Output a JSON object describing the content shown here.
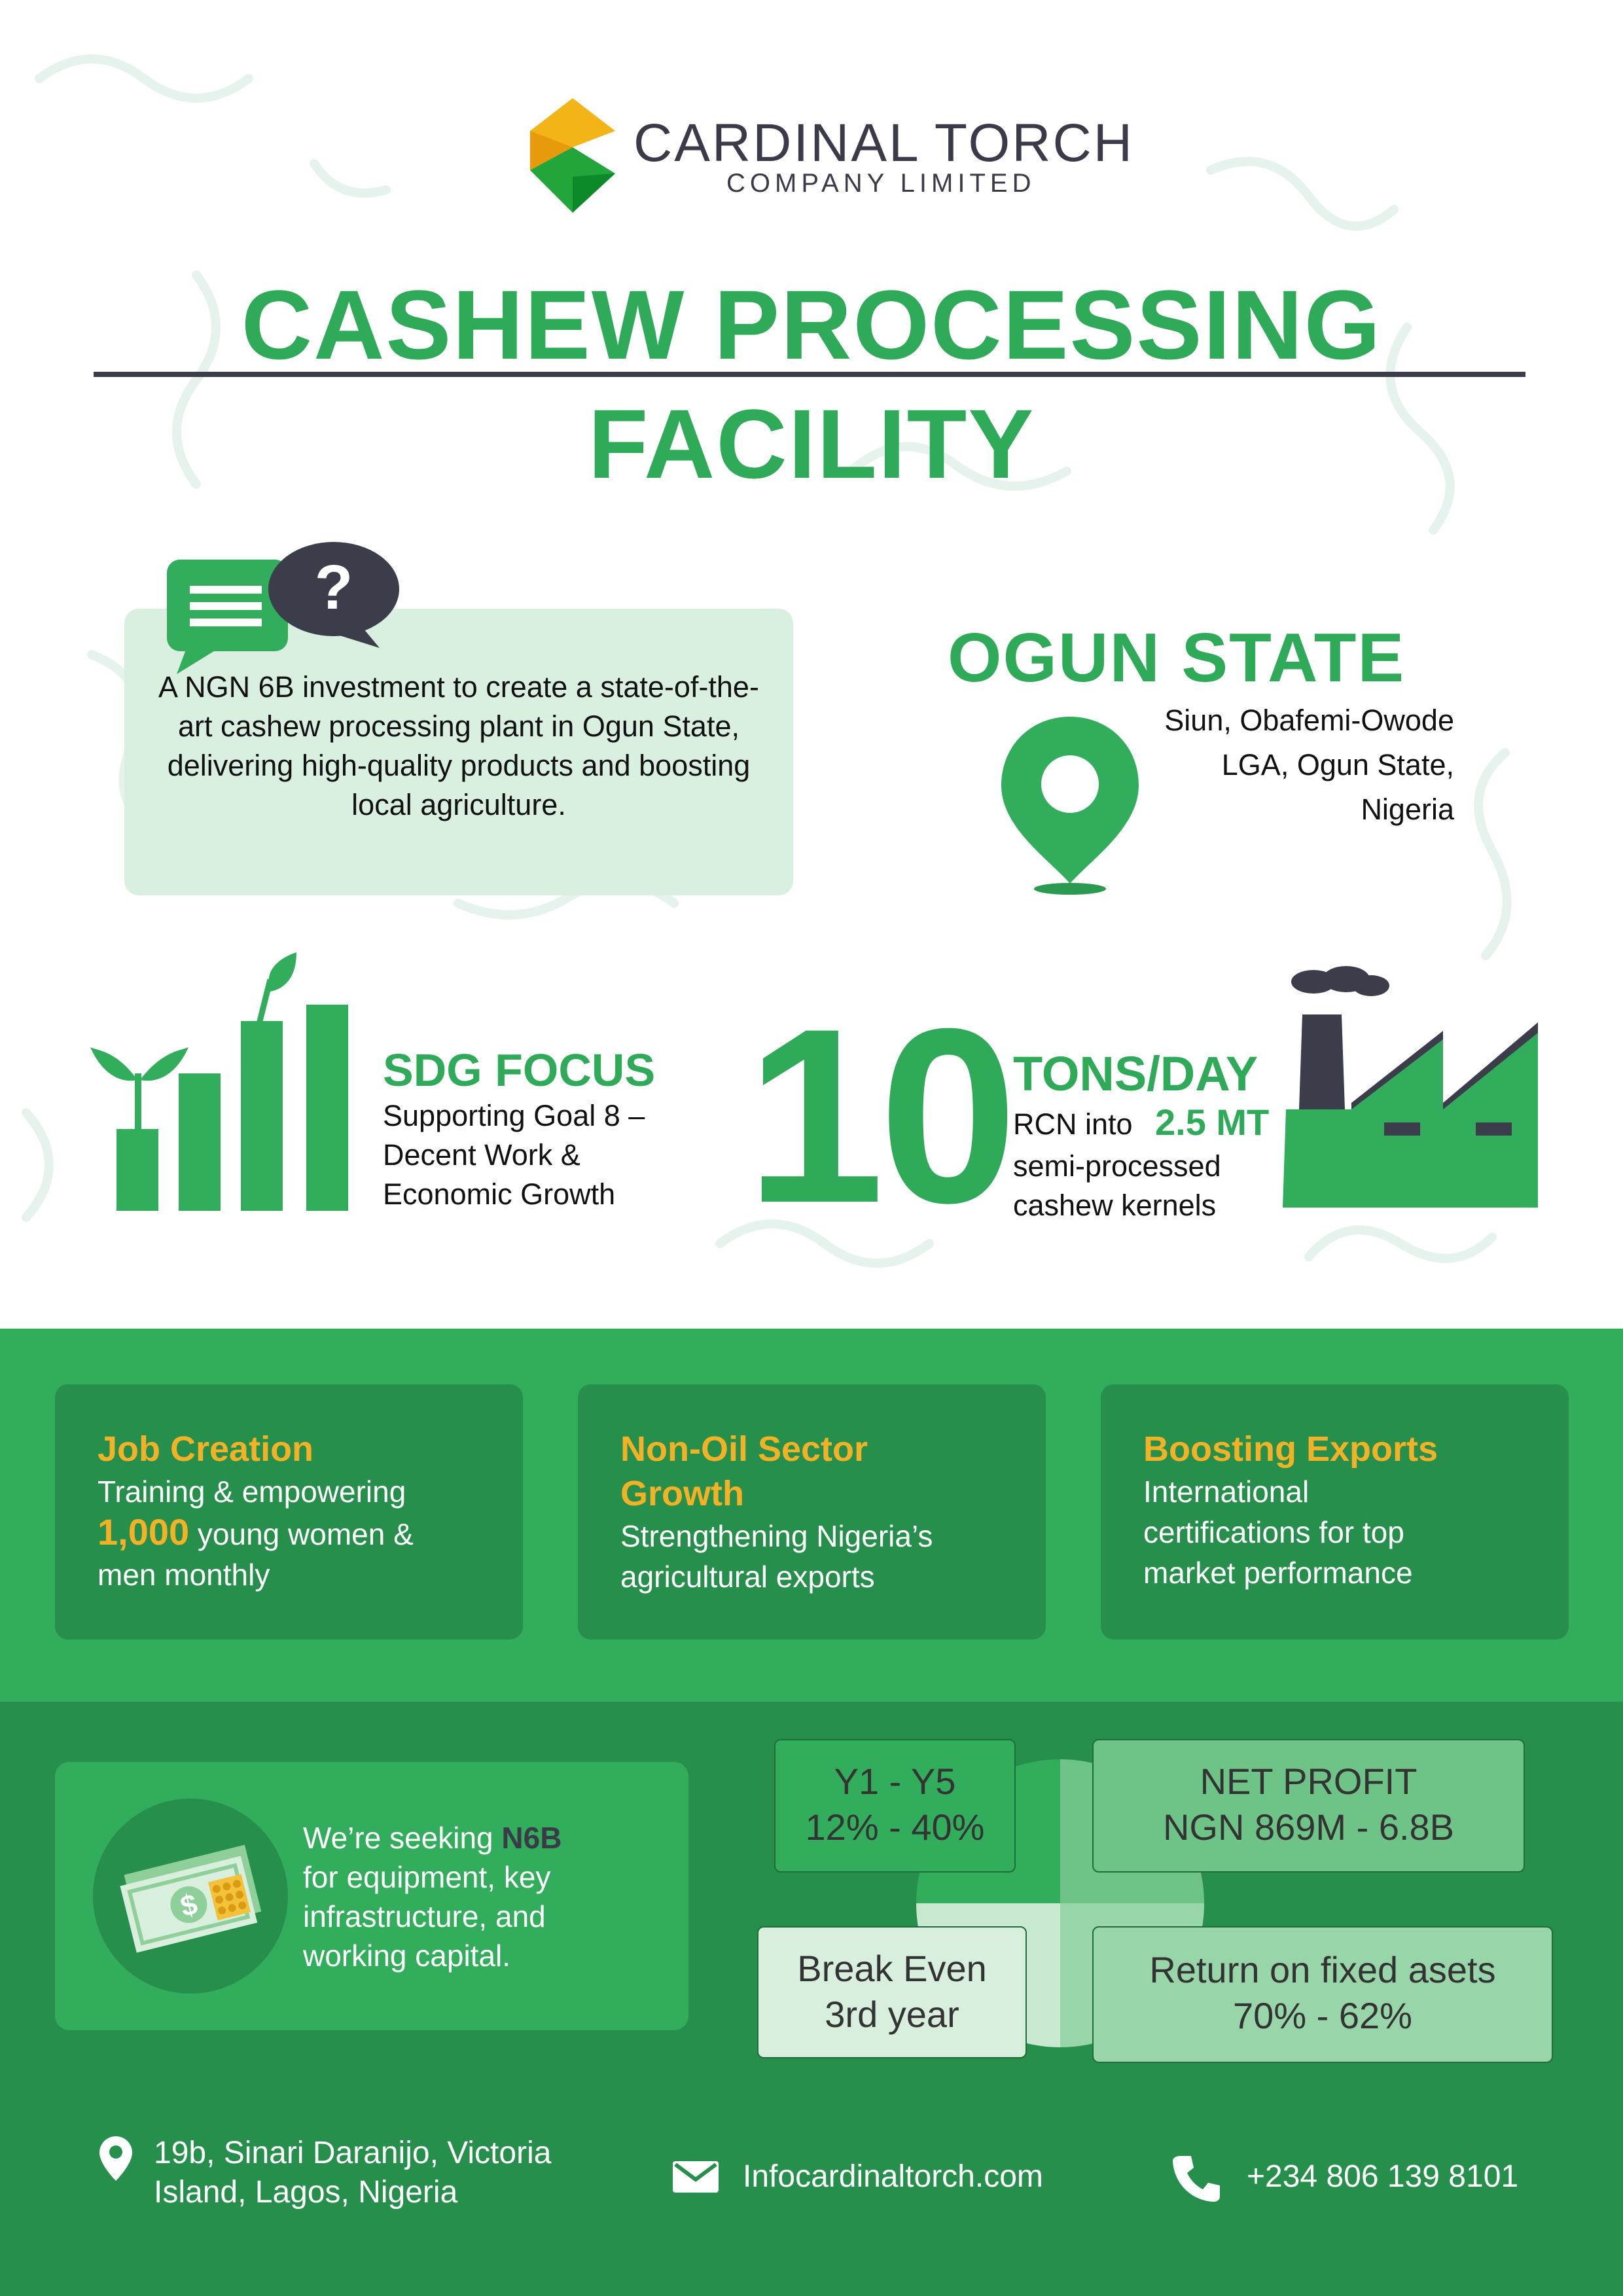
{
  "brand": {
    "name": "CARDINAL TORCH",
    "sub": "COMPANY LIMITED"
  },
  "title": {
    "line1": "CASHEW PROCESSING",
    "line2": "FACILITY"
  },
  "intro": {
    "text": "A NGN 6B investment to create a state-of-the-art cashew processing plant in Ogun State, delivering high-quality products and boosting local agriculture."
  },
  "location": {
    "title": "OGUN STATE",
    "address_lines": [
      "Siun, Obafemi-Owode",
      "LGA, Ogun State,",
      "Nigeria"
    ]
  },
  "sdg": {
    "title": "SDG FOCUS",
    "lines": [
      "Supporting Goal 8 –",
      "Decent Work &",
      "Economic Growth"
    ]
  },
  "capacity": {
    "number": "10",
    "unit": "TONS/DAY",
    "line1": "RCN into",
    "highlight": "2.5 MT",
    "line2": "semi-processed",
    "line3": "cashew kernels"
  },
  "cards": [
    {
      "title": "Job Creation",
      "line1": "Training & empowering",
      "highlight": "1,000",
      "line2": " young women &",
      "line3": "men monthly"
    },
    {
      "title1": "Non-Oil Sector",
      "title2": "Growth",
      "line1": "Strengthening Nigeria’s",
      "line2": "agricultural exports"
    },
    {
      "title": "Boosting Exports",
      "line1": "International",
      "line2": "certifications for top",
      "line3": "market performance"
    }
  ],
  "funding": {
    "pre": "We’re seeking ",
    "amount": "N6B",
    "line2": "for equipment, key",
    "line3": "infrastructure, and",
    "line4": "working capital."
  },
  "stats": [
    {
      "line1": "Y1 - Y5",
      "line2": "12% - 40%"
    },
    {
      "line1": "NET PROFIT",
      "line2": "NGN 869M - 6.8B"
    },
    {
      "line1": "Break Even",
      "line2": "3rd year"
    },
    {
      "line1": "Return on fixed asets",
      "line2": "70% - 62%"
    }
  ],
  "footer": {
    "address_lines": [
      "19b, Sinari Daranijo, Victoria",
      "Island, Lagos, Nigeria"
    ],
    "email": "Infocardinaltorch.com",
    "phone": "+234 806 139 8101"
  },
  "colors": {
    "green": "#2faa58",
    "dark_green": "#268f4c",
    "gold": "#f3b225",
    "slate": "#3a3a48"
  },
  "icons": [
    "chat-question-icon",
    "location-pin-icon",
    "plant-growth-chart-icon",
    "factory-icon",
    "money-icon",
    "map-pin-icon",
    "mail-icon",
    "phone-icon"
  ]
}
